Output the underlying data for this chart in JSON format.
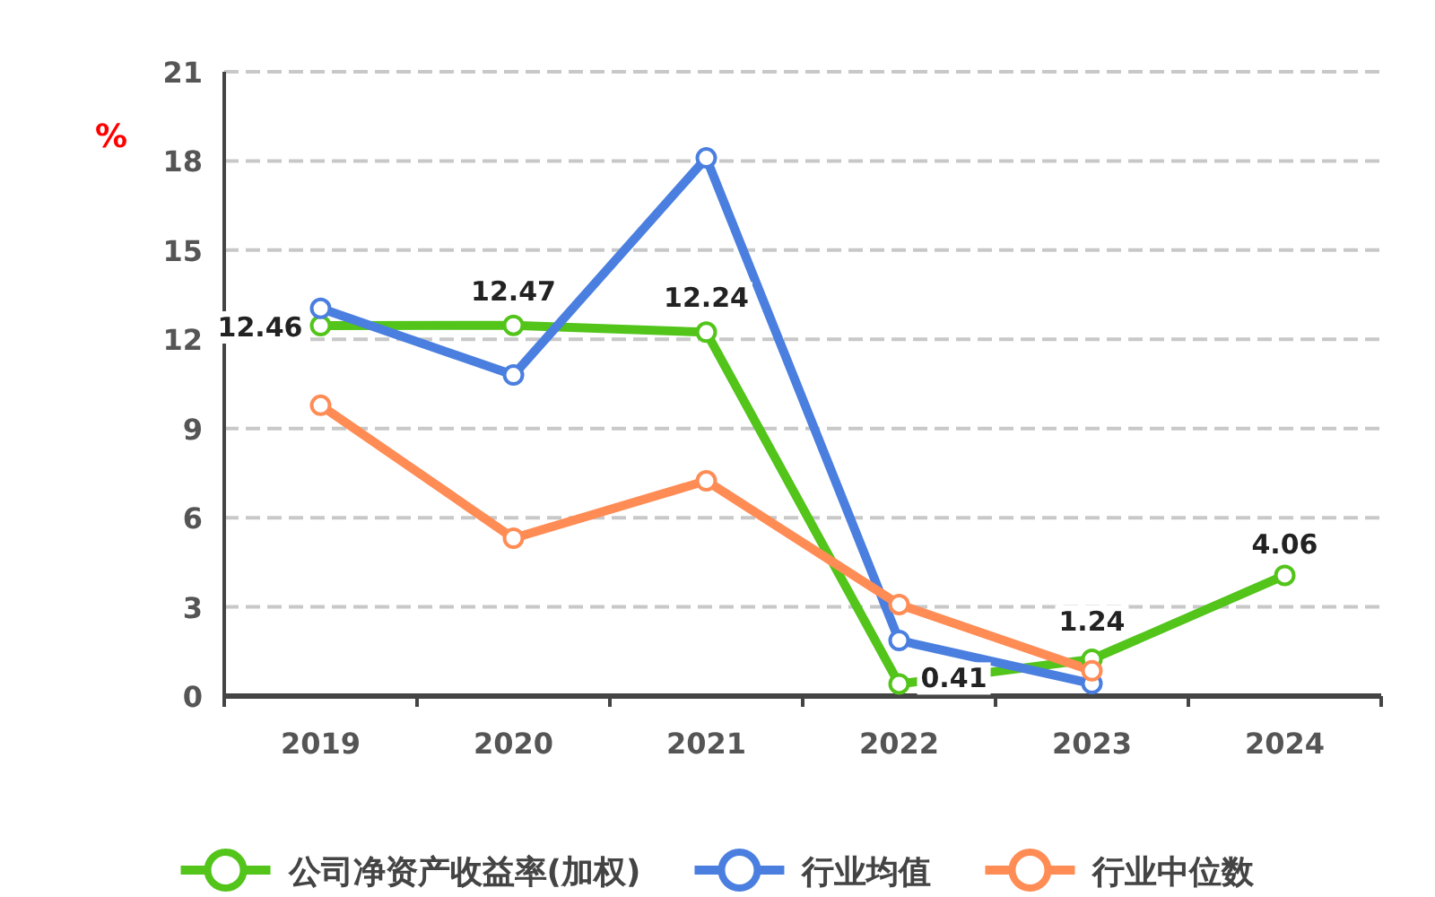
{
  "chart_data": {
    "type": "line",
    "ylabel": "%",
    "categories": [
      "2019",
      "2020",
      "2021",
      "2022",
      "2023",
      "2024"
    ],
    "ylim": [
      0,
      21
    ],
    "yticks": [
      0,
      3,
      6,
      9,
      12,
      15,
      18,
      21
    ],
    "grid": "y",
    "legend": "bottom",
    "marker": "circle",
    "line_style": "solid",
    "series": [
      {
        "name": "公司净资产收益率(加权)",
        "color": "#52c41a",
        "values": [
          12.46,
          12.47,
          12.24,
          0.41,
          1.24,
          4.06
        ],
        "data_labels": true
      },
      {
        "name": "行业均值",
        "color": "#4a7fe0",
        "values": [
          13.04,
          10.8,
          18.1,
          1.87,
          0.42,
          null
        ]
      },
      {
        "name": "行业中位数",
        "color": "#ff8c55",
        "values": [
          9.78,
          5.31,
          7.24,
          3.08,
          0.85,
          null
        ]
      }
    ]
  }
}
